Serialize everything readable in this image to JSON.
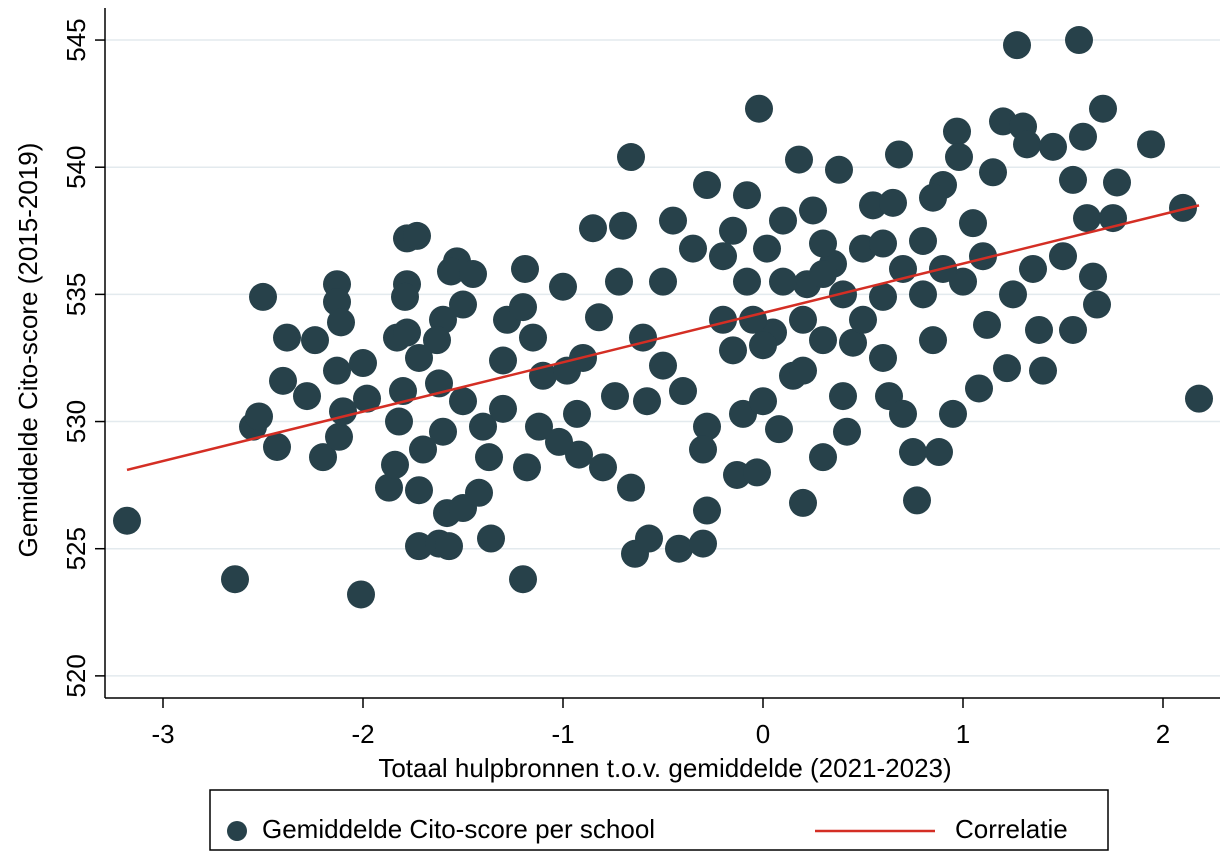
{
  "chart_data": {
    "type": "scatter",
    "xlabel": "Totaal hulpbronnen t.o.v. gemiddelde (2021-2023)",
    "ylabel": "Gemiddelde Cito-score (2015-2019)",
    "xlim": [
      -3.29,
      2.285
    ],
    "ylim": [
      519.13,
      546.26
    ],
    "xticks": [
      -3,
      -2,
      -1,
      0,
      1,
      2
    ],
    "yticks": [
      520,
      525,
      530,
      535,
      540,
      545
    ],
    "grid": true,
    "legend": "bottom",
    "series": [
      {
        "name": "Gemiddelde Cito-score per school",
        "color": "#27414a",
        "type": "scatter",
        "x": [
          -3.18,
          -2.64,
          -2.01,
          -1.2,
          -2.5,
          -2.55,
          -2.52,
          -2.43,
          -2.4,
          -2.38,
          -2.24,
          -2.28,
          -2.2,
          -2.13,
          -2.13,
          -2.11,
          -2.13,
          -2.12,
          -2.1,
          -2,
          -1.98,
          -1.87,
          -1.84,
          -1.83,
          -1.78,
          -1.73,
          -1.78,
          -1.79,
          -1.78,
          -1.8,
          -1.82,
          -1.72,
          -1.7,
          -1.72,
          -1.72,
          -1.62,
          -1.57,
          -1.58,
          -1.5,
          -1.42,
          -1.36,
          -1.53,
          -1.56,
          -1.45,
          -1.5,
          -1.6,
          -1.63,
          -1.62,
          -1.6,
          -1.5,
          -1.4,
          -1.37,
          -1.3,
          -1.3,
          -1.28,
          -1.2,
          -1.19,
          -1.15,
          -1.1,
          -1.18,
          -1.12,
          -1,
          -0.98,
          -1.02,
          -0.93,
          -0.92,
          -0.9,
          -0.85,
          -0.82,
          -0.8,
          -0.74,
          -0.72,
          -0.7,
          -0.66,
          -0.66,
          -0.64,
          -0.57,
          -0.6,
          -0.58,
          -0.5,
          -0.5,
          -0.45,
          -0.42,
          -0.4,
          -0.35,
          -0.3,
          -0.28,
          -0.28,
          -0.3,
          -0.28,
          -0.2,
          -0.15,
          -0.15,
          -0.13,
          -0.1,
          -0.08,
          -0.08,
          -0.02,
          0,
          -0.03,
          0.02,
          0.05,
          0.08,
          0.1,
          0.15,
          0.18,
          0.2,
          0.22,
          0.25,
          0.3,
          0.3,
          0.35,
          0.38,
          0.42,
          0.45,
          0.5,
          0.55,
          0.6,
          0.63,
          0.68,
          0.7,
          0.75,
          0.77,
          0.8,
          0.85,
          0.88,
          0.9,
          0.95,
          0.97,
          0.98,
          1,
          1.05,
          1.08,
          1.12,
          1.15,
          1.2,
          1.22,
          1.27,
          1.3,
          1.32,
          1.35,
          1.38,
          1.4,
          1.45,
          1.5,
          1.55,
          1.55,
          1.58,
          1.6,
          1.62,
          1.65,
          1.67,
          1.7,
          1.75,
          1.77,
          1.94,
          2.1,
          2.18,
          0.2,
          0.4,
          0.6,
          0.8,
          0.1,
          0.3,
          0.5,
          0.7,
          0.9,
          0.2,
          0.4,
          0.6,
          -0.05,
          0.3,
          0.65,
          0.85,
          1.1,
          0,
          -0.2,
          1.25
        ],
        "y": [
          526.1,
          523.8,
          523.2,
          523.8,
          534.9,
          529.8,
          530.2,
          529,
          531.6,
          533.3,
          533.2,
          531,
          528.6,
          535.4,
          534.7,
          533.9,
          532,
          529.4,
          530.4,
          532.3,
          530.9,
          527.4,
          528.3,
          533.3,
          537.2,
          537.3,
          535.4,
          534.9,
          533.5,
          531.2,
          530,
          532.5,
          528.9,
          527.3,
          525.1,
          525.2,
          525.1,
          526.4,
          526.6,
          527.2,
          525.4,
          536.3,
          535.9,
          535.8,
          534.6,
          534,
          533.2,
          531.5,
          529.6,
          530.8,
          529.8,
          528.6,
          530.5,
          532.4,
          534,
          534.5,
          536,
          533.3,
          531.8,
          528.2,
          529.8,
          535.3,
          532,
          529.2,
          530.3,
          528.7,
          532.5,
          537.6,
          534.1,
          528.2,
          531,
          535.5,
          537.7,
          540.4,
          527.4,
          524.8,
          525.4,
          533.3,
          530.8,
          535.5,
          532.2,
          537.9,
          525,
          531.2,
          536.8,
          525.2,
          526.5,
          529.8,
          528.9,
          539.3,
          534,
          532.8,
          537.5,
          527.9,
          530.3,
          535.5,
          538.9,
          542.3,
          530.8,
          528,
          536.8,
          533.5,
          529.7,
          537.9,
          531.8,
          540.3,
          526.8,
          535.4,
          538.3,
          528.6,
          533.2,
          536.2,
          539.9,
          529.6,
          533.1,
          536.8,
          538.5,
          534.9,
          531,
          540.5,
          530.3,
          528.8,
          526.9,
          537.1,
          533.2,
          528.8,
          539.3,
          530.3,
          541.4,
          540.4,
          535.5,
          537.8,
          531.3,
          533.8,
          539.8,
          541.8,
          532.1,
          544.8,
          541.6,
          540.9,
          536,
          533.6,
          532,
          540.8,
          536.5,
          533.6,
          539.5,
          545,
          541.2,
          538,
          535.7,
          534.6,
          542.3,
          538,
          539.4,
          540.9,
          538.4,
          530.9,
          534,
          535,
          537,
          535,
          535.5,
          537,
          534,
          536,
          536,
          532,
          531,
          532.5,
          534,
          535.8,
          538.6,
          538.8,
          536.5,
          533,
          536.5,
          535
        ]
      },
      {
        "name": "Correlatie",
        "color": "#d42e24",
        "type": "line",
        "x": [
          -3.18,
          2.18
        ],
        "y": [
          528.1,
          538.5
        ]
      }
    ]
  }
}
